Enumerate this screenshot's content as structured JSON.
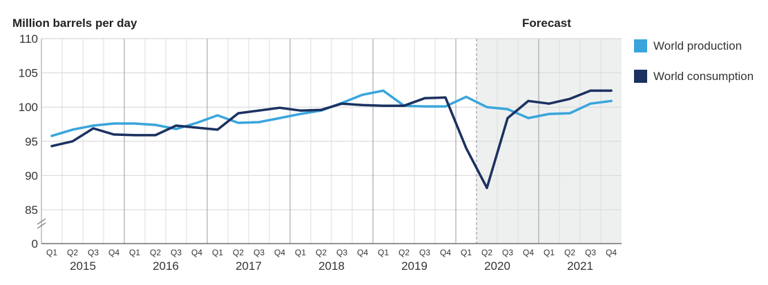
{
  "chart_data": {
    "type": "line",
    "ylabel": "Million barrels per day",
    "forecast_label": "Forecast",
    "forecast_start": "2020 Q2",
    "yticks": [
      "0",
      "85",
      "90",
      "95",
      "100",
      "105",
      "110"
    ],
    "ylim": [
      80,
      110
    ],
    "y_axis_break": true,
    "grid": true,
    "legend_position": "right",
    "years": [
      "2015",
      "2016",
      "2017",
      "2018",
      "2019",
      "2020",
      "2021"
    ],
    "quarter_labels": [
      "Q1",
      "Q2",
      "Q3",
      "Q4"
    ],
    "x": [
      "2015 Q1",
      "2015 Q2",
      "2015 Q3",
      "2015 Q4",
      "2016 Q1",
      "2016 Q2",
      "2016 Q3",
      "2016 Q4",
      "2017 Q1",
      "2017 Q2",
      "2017 Q3",
      "2017 Q4",
      "2018 Q1",
      "2018 Q2",
      "2018 Q3",
      "2018 Q4",
      "2019 Q1",
      "2019 Q2",
      "2019 Q3",
      "2019 Q4",
      "2020 Q1",
      "2020 Q2",
      "2020 Q3",
      "2020 Q4",
      "2021 Q1",
      "2021 Q2",
      "2021 Q3",
      "2021 Q4"
    ],
    "series": [
      {
        "name": "World production",
        "color": "#3aa5dc",
        "values": [
          95.8,
          96.7,
          97.3,
          97.6,
          97.6,
          97.4,
          96.8,
          97.7,
          98.8,
          97.7,
          97.8,
          98.4,
          99.0,
          99.5,
          100.6,
          101.8,
          102.4,
          100.2,
          100.1,
          100.1,
          101.5,
          100.0,
          99.7,
          98.4,
          99.0,
          99.1,
          100.5,
          100.9
        ]
      },
      {
        "name": "World consumption",
        "color": "#1b3160",
        "values": [
          94.3,
          95.0,
          96.9,
          96.0,
          95.9,
          95.9,
          97.3,
          97.0,
          96.7,
          99.1,
          99.5,
          99.9,
          99.5,
          99.6,
          100.5,
          100.3,
          100.2,
          100.2,
          101.3,
          101.4,
          94.0,
          88.2,
          98.4,
          100.9,
          100.5,
          101.2,
          102.4,
          102.4
        ]
      }
    ]
  }
}
